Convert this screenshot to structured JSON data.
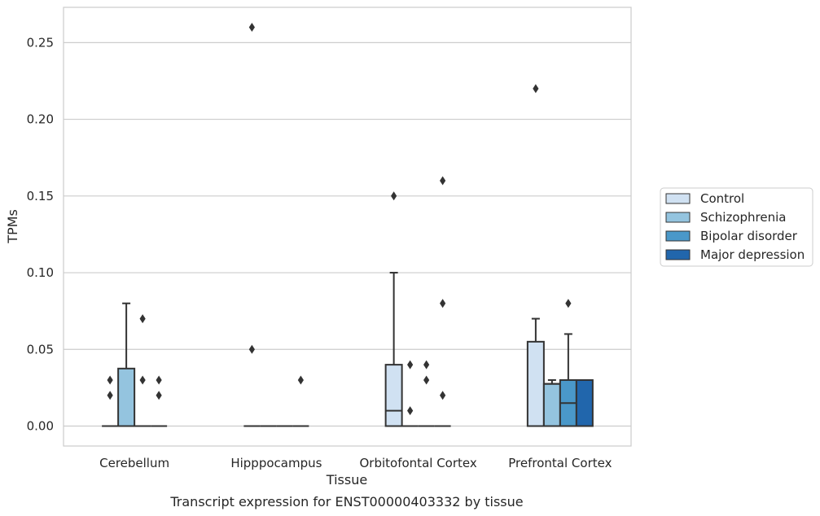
{
  "chart_data": {
    "type": "box",
    "xlabel": "Tissue",
    "ylabel": "TPMs",
    "caption": "Transcript expression for ENST00000403332 by tissue",
    "categories": [
      "Cerebellum",
      "Hipppocampus",
      "Orbitofontal Cortex",
      "Prefrontal Cortex"
    ],
    "ylim": [
      -0.013,
      0.273
    ],
    "yticks": [
      0.0,
      0.05,
      0.1,
      0.15,
      0.2,
      0.25
    ],
    "ytick_labels": [
      "0.00",
      "0.05",
      "0.10",
      "0.15",
      "0.20",
      "0.25"
    ],
    "grid": "horizontal",
    "legend_position": "right",
    "series": [
      {
        "name": "Control",
        "color": "#d0e1f2",
        "boxes": [
          {
            "q1": 0,
            "median": 0,
            "q3": 0,
            "whisker_low": 0,
            "whisker_high": 0,
            "outliers": [
              0.02,
              0.03
            ]
          },
          {
            "q1": 0,
            "median": 0,
            "q3": 0,
            "whisker_low": 0,
            "whisker_high": 0,
            "outliers": [
              0.05,
              0.26
            ]
          },
          {
            "q1": 0,
            "median": 0.01,
            "q3": 0.04,
            "whisker_low": 0,
            "whisker_high": 0.1,
            "outliers": [
              0.15
            ]
          },
          {
            "q1": 0,
            "median": 0,
            "q3": 0.055,
            "whisker_low": 0,
            "whisker_high": 0.07,
            "outliers": [
              0.22
            ]
          }
        ]
      },
      {
        "name": "Schizophrenia",
        "color": "#94c4df",
        "boxes": [
          {
            "q1": 0,
            "median": 0,
            "q3": 0.0375,
            "whisker_low": 0,
            "whisker_high": 0.08,
            "outliers": []
          },
          {
            "q1": 0,
            "median": 0,
            "q3": 0,
            "whisker_low": 0,
            "whisker_high": 0,
            "outliers": []
          },
          {
            "q1": 0,
            "median": 0,
            "q3": 0,
            "whisker_low": 0,
            "whisker_high": 0,
            "outliers": [
              0.01,
              0.04
            ]
          },
          {
            "q1": 0,
            "median": 0.0275,
            "q3": 0.0275,
            "whisker_low": 0,
            "whisker_high": 0.03,
            "outliers": []
          }
        ]
      },
      {
        "name": "Bipolar disorder",
        "color": "#4a98c9",
        "boxes": [
          {
            "q1": 0,
            "median": 0,
            "q3": 0,
            "whisker_low": 0,
            "whisker_high": 0,
            "outliers": [
              0.03,
              0.07
            ]
          },
          {
            "q1": 0,
            "median": 0,
            "q3": 0,
            "whisker_low": 0,
            "whisker_high": 0,
            "outliers": []
          },
          {
            "q1": 0,
            "median": 0,
            "q3": 0,
            "whisker_low": 0,
            "whisker_high": 0,
            "outliers": [
              0.03,
              0.04
            ]
          },
          {
            "q1": 0,
            "median": 0.015,
            "q3": 0.03,
            "whisker_low": 0,
            "whisker_high": 0.06,
            "outliers": [
              0.08
            ]
          }
        ]
      },
      {
        "name": "Major depression",
        "color": "#2166ac",
        "boxes": [
          {
            "q1": 0,
            "median": 0,
            "q3": 0,
            "whisker_low": 0,
            "whisker_high": 0,
            "outliers": [
              0.02,
              0.03
            ]
          },
          {
            "q1": 0,
            "median": 0,
            "q3": 0,
            "whisker_low": 0,
            "whisker_high": 0,
            "outliers": [
              0.03
            ]
          },
          {
            "q1": 0,
            "median": 0,
            "q3": 0,
            "whisker_low": 0,
            "whisker_high": 0,
            "outliers": [
              0.02,
              0.08,
              0.16
            ]
          },
          {
            "q1": 0,
            "median": 0,
            "q3": 0.03,
            "whisker_low": 0,
            "whisker_high": 0.03,
            "outliers": []
          }
        ]
      }
    ]
  }
}
